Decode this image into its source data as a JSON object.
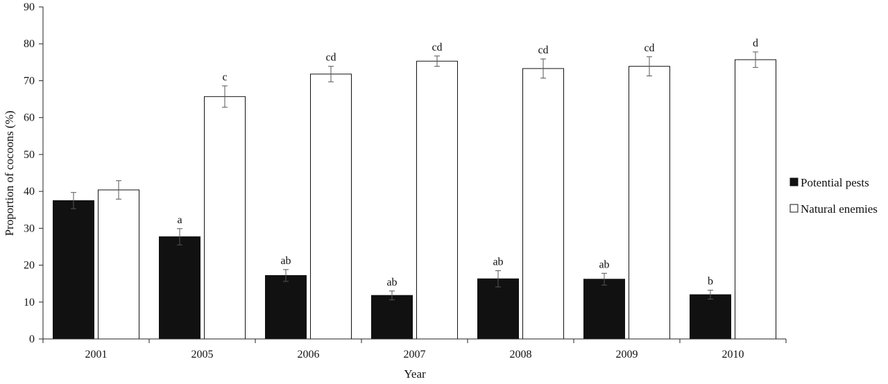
{
  "chart_data": {
    "type": "bar",
    "title": "",
    "xlabel": "Year",
    "ylabel": "Proportion of cocoons (%)",
    "ylim": [
      0,
      90
    ],
    "yticks": [
      0,
      10,
      20,
      30,
      40,
      50,
      60,
      70,
      80,
      90
    ],
    "categories": [
      "2001",
      "2005",
      "2006",
      "2007",
      "2008",
      "2009",
      "2010"
    ],
    "series": [
      {
        "name": "Potential pests",
        "color": "#111111",
        "values": [
          37.5,
          27.7,
          17.2,
          11.8,
          16.3,
          16.2,
          12.0
        ],
        "errors": [
          2.2,
          2.2,
          1.6,
          1.2,
          2.2,
          1.6,
          1.2
        ],
        "letters": [
          "",
          "a",
          "ab",
          "ab",
          "ab",
          "ab",
          "b"
        ]
      },
      {
        "name": "Natural enemies",
        "color": "#ffffff",
        "values": [
          40.4,
          65.7,
          71.8,
          75.3,
          73.3,
          73.9,
          75.7
        ],
        "errors": [
          2.5,
          2.9,
          2.1,
          1.4,
          2.6,
          2.6,
          2.1
        ],
        "letters": [
          "",
          "c",
          "cd",
          "cd",
          "cd",
          "cd",
          "d"
        ]
      }
    ],
    "legend_position": "right",
    "grid": false
  }
}
